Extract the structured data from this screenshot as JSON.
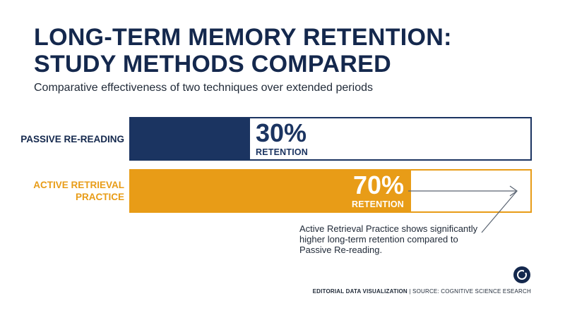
{
  "header": {
    "title_line1": "LONG-TERM MEMORY RETENTION:",
    "title_line2": "STUDY METHODS COMPARED",
    "subtitle": "Comparative effectiveness of two techniques over extended periods"
  },
  "chart_data": {
    "type": "bar",
    "orientation": "horizontal",
    "categories": [
      "PASSIVE RE-READING",
      "ACTIVE RETRIEVAL PRACTICE"
    ],
    "values": [
      30,
      70
    ],
    "unit_label": "RETENTION",
    "value_suffix": "%",
    "xlim": [
      0,
      100
    ],
    "colors": [
      "#1b3461",
      "#e89c17"
    ],
    "category_colors": [
      "#14284d",
      "#e89c17"
    ],
    "labels": [
      "30%",
      "70%"
    ]
  },
  "annotation": {
    "text": "Active Retrieval Practice shows significantly higher long-term retention compared to Passive Re-reading."
  },
  "footer": {
    "brand": "EDITORIAL DATA VISUALIZATION",
    "separator": " | ",
    "source": "SOURCE: COGNITIVE SCIENCE ESEARCH"
  },
  "logo": {
    "icon": "circle-logo-icon"
  },
  "colors": {
    "navy": "#14284d",
    "orange": "#e89c17"
  }
}
